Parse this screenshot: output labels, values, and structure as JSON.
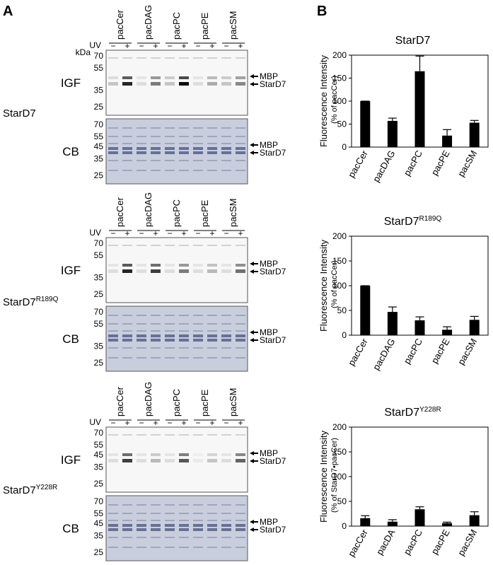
{
  "panel_labels": [
    "A",
    "B"
  ],
  "gels": [
    {
      "construct": "StarD7",
      "lanes": [
        "pacCer",
        "pacDAG",
        "pacPC",
        "pacPE",
        "pacSM"
      ],
      "uv_label": "UV",
      "uv": [
        "−",
        "+",
        "−",
        "+",
        "−",
        "+",
        "−",
        "+",
        "−",
        "+"
      ],
      "igf": {
        "label": "IGF",
        "kda": "kDa",
        "markers": [
          70,
          55,
          35,
          25
        ],
        "bands": [
          "MBP",
          "StarD7"
        ]
      },
      "cb": {
        "label": "CB",
        "markers": [
          70,
          55,
          45,
          35,
          25
        ],
        "bands": [
          "MBP",
          "StarD7"
        ]
      }
    },
    {
      "construct": "StarD7",
      "construct_superscript": "R189Q",
      "lanes": [
        "pacCer",
        "pacDAG",
        "pacPC",
        "pacPE",
        "pacSM"
      ],
      "uv_label": "UV",
      "uv": [
        "−",
        "+",
        "−",
        "+",
        "−",
        "+",
        "−",
        "+",
        "−",
        "+"
      ],
      "igf": {
        "label": "IGF",
        "markers": [
          70,
          55,
          35,
          25
        ],
        "bands": [
          "MBP",
          "StarD7"
        ]
      },
      "cb": {
        "label": "CB",
        "markers": [
          70,
          55,
          35,
          25
        ],
        "bands": [
          "MBP",
          "StarD7"
        ]
      }
    },
    {
      "construct": "StarD7",
      "construct_superscript": "Y228R",
      "lanes": [
        "pacCer",
        "pacDAG",
        "pacPC",
        "pacPE",
        "pacSM"
      ],
      "uv_label": "UV",
      "uv": [
        "−",
        "+",
        "−",
        "+",
        "−",
        "+",
        "−",
        "+",
        "−",
        "+"
      ],
      "igf": {
        "label": "IGF",
        "markers": [
          70,
          55,
          45,
          35,
          25
        ],
        "bands": [
          "MBP",
          "StarD7"
        ]
      },
      "cb": {
        "label": "CB",
        "markers": [
          70,
          55,
          45,
          35,
          25
        ],
        "bands": [
          "MBP",
          "StarD7"
        ]
      }
    }
  ],
  "chart_data": [
    {
      "type": "bar",
      "title": "StarD7",
      "ylabel": "Fluorescence Intensity",
      "ylabel_sub": "(% of pacCer)",
      "categories": [
        "pacCer",
        "pacDAG",
        "pacPC",
        "pacPE",
        "pacSM"
      ],
      "values": [
        100,
        57,
        165,
        25,
        53
      ],
      "errors": [
        0,
        6,
        33,
        13,
        5
      ],
      "color": "#000000",
      "ylim": [
        0,
        200
      ],
      "yticks": [
        0,
        50,
        100,
        150,
        200
      ]
    },
    {
      "type": "bar",
      "title": "StarD7",
      "title_superscript": "R189Q",
      "ylabel": "Fluorescence Intensity",
      "ylabel_sub": "(% of pacCer)",
      "categories": [
        "pacCer",
        "pacDAG",
        "pacPC",
        "pacPE",
        "pacSM"
      ],
      "values": [
        100,
        47,
        30,
        11,
        31
      ],
      "errors": [
        0,
        10,
        7,
        6,
        7
      ],
      "color": "#000000",
      "ylim": [
        0,
        200
      ],
      "yticks": [
        0,
        50,
        100,
        150,
        200
      ]
    },
    {
      "type": "bar",
      "title": "StarD7",
      "title_superscript": "Y228R",
      "ylabel": "Fluorescence Intensity",
      "ylabel_sub": "(% of StarD7•pacCer)",
      "categories": [
        "pacCer",
        "pacDA",
        "pacPC",
        "pacPE",
        "pacSM"
      ],
      "values": [
        16,
        9,
        34,
        6,
        22
      ],
      "errors": [
        5,
        4,
        5,
        2,
        7
      ],
      "color": "#000000",
      "ylim": [
        0,
        200
      ],
      "yticks": [
        0,
        50,
        100,
        150,
        200
      ]
    }
  ]
}
